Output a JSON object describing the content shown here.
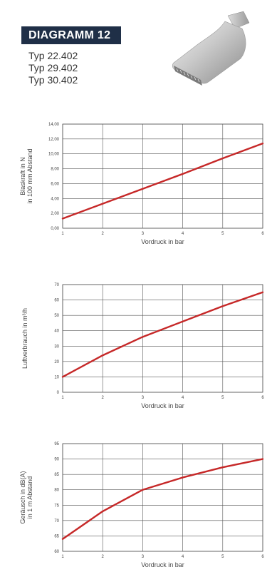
{
  "header": {
    "title": "DIAGRAMM 12",
    "types": [
      "Typ 22.402",
      "Typ 29.402",
      "Typ 30.402"
    ]
  },
  "images": {
    "nozzle": "flat-air-nozzle-icon"
  },
  "colors": {
    "title_bg": "#1f2f47",
    "series": "#c62828",
    "grid": "#555555"
  },
  "chart_data": [
    {
      "type": "line",
      "title": "",
      "xlabel": "Vordruck in bar",
      "ylabel_lines": [
        "Blaskraft in N",
        "in 100 mm Abstand"
      ],
      "x": [
        1,
        2,
        3,
        4,
        5,
        6
      ],
      "xlim": [
        1,
        6
      ],
      "ylim": [
        0,
        14
      ],
      "yticks": [
        "0,00",
        "2,00",
        "4,00",
        "6,00",
        "8,00",
        "10,00",
        "12,00",
        "14,00"
      ],
      "ytick_values": [
        0,
        2,
        4,
        6,
        8,
        10,
        12,
        14
      ],
      "xticks": [
        "1",
        "2",
        "3",
        "4",
        "5",
        "6"
      ],
      "grid": true,
      "series": [
        {
          "values": [
            1.3,
            3.3,
            5.3,
            7.3,
            9.4,
            11.4
          ]
        }
      ]
    },
    {
      "type": "line",
      "title": "",
      "xlabel": "Vordruck in bar",
      "ylabel_lines": [
        "Luftverbrauch in m³/h"
      ],
      "x": [
        1,
        2,
        3,
        4,
        5,
        6
      ],
      "xlim": [
        1,
        6
      ],
      "ylim": [
        0,
        70
      ],
      "yticks": [
        "0",
        "10",
        "20",
        "30",
        "40",
        "50",
        "60",
        "70"
      ],
      "ytick_values": [
        0,
        10,
        20,
        30,
        40,
        50,
        60,
        70
      ],
      "xticks": [
        "1",
        "2",
        "3",
        "4",
        "5",
        "6"
      ],
      "grid": true,
      "series": [
        {
          "values": [
            10,
            24,
            36,
            46,
            56,
            65
          ]
        }
      ]
    },
    {
      "type": "line",
      "title": "",
      "xlabel": "Vordruck in bar",
      "ylabel_lines": [
        "Geräusch in dB(A)",
        "in 1 m Abstand"
      ],
      "x": [
        1,
        2,
        3,
        4,
        5,
        6
      ],
      "xlim": [
        1,
        6
      ],
      "ylim": [
        60,
        95
      ],
      "yticks": [
        "60",
        "65",
        "70",
        "75",
        "80",
        "85",
        "90",
        "95"
      ],
      "ytick_values": [
        60,
        65,
        70,
        75,
        80,
        85,
        90,
        95
      ],
      "xticks": [
        "1",
        "2",
        "3",
        "4",
        "5",
        "6"
      ],
      "grid": true,
      "series": [
        {
          "values": [
            64,
            73,
            80,
            84,
            87.3,
            90
          ]
        }
      ]
    }
  ]
}
